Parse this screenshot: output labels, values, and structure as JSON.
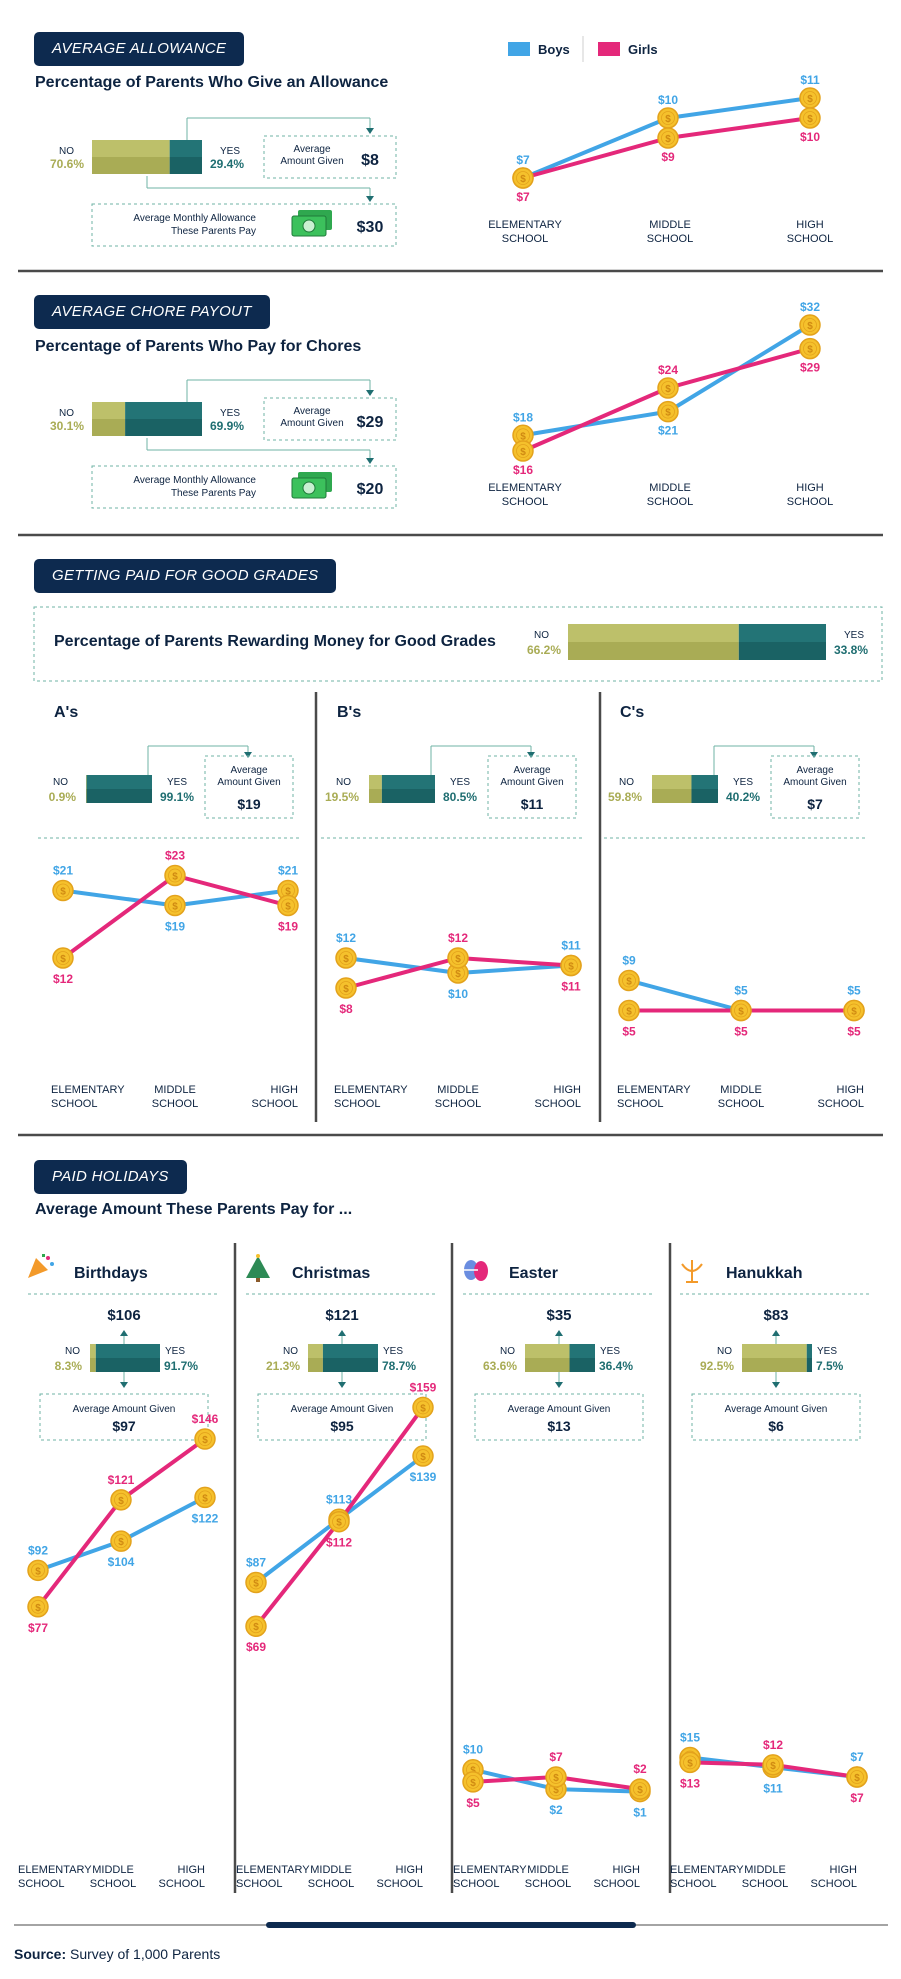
{
  "legend": {
    "boys": "Boys",
    "girls": "Girls"
  },
  "colors": {
    "boys": "#41a5e6",
    "girls": "#e4287a",
    "no": "#b8bb62",
    "yes": "#1f6e71",
    "navy": "#0d2a4f",
    "coin": "#f5c12c"
  },
  "school_levels": [
    "ELEMENTARY\nSCHOOL",
    "MIDDLE\nSCHOOL",
    "HIGH\nSCHOOL"
  ],
  "allowance": {
    "pill": "AVERAGE ALLOWANCE",
    "title": "Percentage of Parents Who Give an Allowance",
    "no_label": "NO",
    "no_pct": "70.6%",
    "no_value": 70.6,
    "yes_label": "YES",
    "yes_pct": "29.4%",
    "yes_value": 29.4,
    "avg_label": "Average\nAmount Given",
    "avg_value": "$8",
    "monthly_label": "Average Monthly Allowance\nThese Parents Pay",
    "monthly_value": "$30"
  },
  "chore": {
    "pill": "AVERAGE CHORE PAYOUT",
    "title": "Percentage of Parents Who Pay for Chores",
    "no_label": "NO",
    "no_pct": "30.1%",
    "no_value": 30.1,
    "yes_label": "YES",
    "yes_pct": "69.9%",
    "yes_value": 69.9,
    "avg_label": "Average\nAmount Given",
    "avg_value": "$29",
    "monthly_label": "Average Monthly Allowance\nThese Parents Pay",
    "monthly_value": "$20"
  },
  "grades": {
    "pill": "GETTING PAID FOR GOOD GRADES",
    "title": "Percentage of Parents Rewarding Money for Good Grades",
    "no_label": "NO",
    "no_pct": "66.2%",
    "no_value": 66.2,
    "yes_label": "YES",
    "yes_pct": "33.8%",
    "yes_value": 33.8,
    "panels": [
      {
        "title": "A's",
        "no_pct": "0.9%",
        "no_value": 0.9,
        "yes_pct": "99.1%",
        "yes_value": 99.1,
        "avg_label": "Average\nAmount Given",
        "avg_value": "$19"
      },
      {
        "title": "B's",
        "no_pct": "19.5%",
        "no_value": 19.5,
        "yes_pct": "80.5%",
        "yes_value": 80.5,
        "avg_label": "Average\nAmount Given",
        "avg_value": "$11"
      },
      {
        "title": "C's",
        "no_pct": "59.8%",
        "no_value": 59.8,
        "yes_pct": "40.2%",
        "yes_value": 40.2,
        "avg_label": "Average\nAmount Given",
        "avg_value": "$7"
      }
    ]
  },
  "holidays": {
    "pill": "PAID HOLIDAYS",
    "title": "Average Amount These Parents Pay for ...",
    "panels": [
      {
        "title": "Birthdays",
        "icon": "party-popper-icon",
        "top_value": "$106",
        "no_pct": "8.3%",
        "no_value": 8.3,
        "yes_pct": "91.7%",
        "yes_value": 91.7,
        "avg_label": "Average Amount Given",
        "avg_value": "$97"
      },
      {
        "title": "Christmas",
        "icon": "christmas-tree-icon",
        "top_value": "$121",
        "no_pct": "21.3%",
        "no_value": 21.3,
        "yes_pct": "78.7%",
        "yes_value": 78.7,
        "avg_label": "Average Amount Given",
        "avg_value": "$95"
      },
      {
        "title": "Easter",
        "icon": "easter-egg-icon",
        "top_value": "$35",
        "no_pct": "63.6%",
        "no_value": 63.6,
        "yes_pct": "36.4%",
        "yes_value": 36.4,
        "avg_label": "Average Amount Given",
        "avg_value": "$13"
      },
      {
        "title": "Hanukkah",
        "icon": "menorah-icon",
        "top_value": "$83",
        "no_pct": "92.5%",
        "no_value": 92.5,
        "yes_pct": "7.5%",
        "yes_value": 7.5,
        "avg_label": "Average Amount Given",
        "avg_value": "$6"
      }
    ]
  },
  "source": {
    "label": "Source:",
    "text": "Survey of 1,000 Parents"
  },
  "chart_data": [
    {
      "type": "line",
      "id": "allowance",
      "categories": [
        "ELEMENTARY SCHOOL",
        "MIDDLE SCHOOL",
        "HIGH SCHOOL"
      ],
      "series": [
        {
          "name": "Boys",
          "values": [
            7,
            10,
            11
          ]
        },
        {
          "name": "Girls",
          "values": [
            7,
            9,
            10
          ]
        }
      ],
      "ylim": [
        7,
        11
      ]
    },
    {
      "type": "line",
      "id": "chore",
      "categories": [
        "ELEMENTARY SCHOOL",
        "MIDDLE SCHOOL",
        "HIGH SCHOOL"
      ],
      "series": [
        {
          "name": "Boys",
          "values": [
            18,
            21,
            32
          ]
        },
        {
          "name": "Girls",
          "values": [
            16,
            24,
            29
          ]
        }
      ],
      "ylim": [
        16,
        32
      ]
    },
    {
      "type": "line",
      "id": "grades-a",
      "categories": [
        "ELEMENTARY SCHOOL",
        "MIDDLE SCHOOL",
        "HIGH SCHOOL"
      ],
      "series": [
        {
          "name": "Boys",
          "values": [
            21,
            19,
            21
          ]
        },
        {
          "name": "Girls",
          "values": [
            12,
            23,
            19
          ]
        }
      ],
      "ylim": [
        0,
        24
      ]
    },
    {
      "type": "line",
      "id": "grades-b",
      "categories": [
        "ELEMENTARY SCHOOL",
        "MIDDLE SCHOOL",
        "HIGH SCHOOL"
      ],
      "series": [
        {
          "name": "Boys",
          "values": [
            12,
            10,
            11
          ]
        },
        {
          "name": "Girls",
          "values": [
            8,
            12,
            11
          ]
        }
      ],
      "ylim": [
        0,
        24
      ]
    },
    {
      "type": "line",
      "id": "grades-c",
      "categories": [
        "ELEMENTARY SCHOOL",
        "MIDDLE SCHOOL",
        "HIGH SCHOOL"
      ],
      "series": [
        {
          "name": "Boys",
          "values": [
            9,
            5,
            5
          ]
        },
        {
          "name": "Girls",
          "values": [
            5,
            5,
            5
          ]
        }
      ],
      "ylim": [
        0,
        24
      ]
    },
    {
      "type": "line",
      "id": "birthdays",
      "categories": [
        "ELEMENTARY SCHOOL",
        "MIDDLE SCHOOL",
        "HIGH SCHOOL"
      ],
      "series": [
        {
          "name": "Boys",
          "values": [
            92,
            104,
            122
          ]
        },
        {
          "name": "Girls",
          "values": [
            77,
            121,
            146
          ]
        }
      ],
      "ylim": [
        0,
        160
      ]
    },
    {
      "type": "line",
      "id": "christmas",
      "categories": [
        "ELEMENTARY SCHOOL",
        "MIDDLE SCHOOL",
        "HIGH SCHOOL"
      ],
      "series": [
        {
          "name": "Boys",
          "values": [
            87,
            113,
            139
          ]
        },
        {
          "name": "Girls",
          "values": [
            69,
            112,
            159
          ]
        }
      ],
      "ylim": [
        0,
        160
      ]
    },
    {
      "type": "line",
      "id": "easter",
      "categories": [
        "ELEMENTARY SCHOOL",
        "MIDDLE SCHOOL",
        "HIGH SCHOOL"
      ],
      "series": [
        {
          "name": "Boys",
          "values": [
            10,
            2,
            1
          ]
        },
        {
          "name": "Girls",
          "values": [
            5,
            7,
            2
          ]
        }
      ],
      "ylim": [
        0,
        160
      ]
    },
    {
      "type": "line",
      "id": "hanukkah",
      "categories": [
        "ELEMENTARY SCHOOL",
        "MIDDLE SCHOOL",
        "HIGH SCHOOL"
      ],
      "series": [
        {
          "name": "Boys",
          "values": [
            15,
            11,
            7
          ]
        },
        {
          "name": "Girls",
          "values": [
            13,
            12,
            7
          ]
        }
      ],
      "ylim": [
        0,
        160
      ]
    }
  ]
}
